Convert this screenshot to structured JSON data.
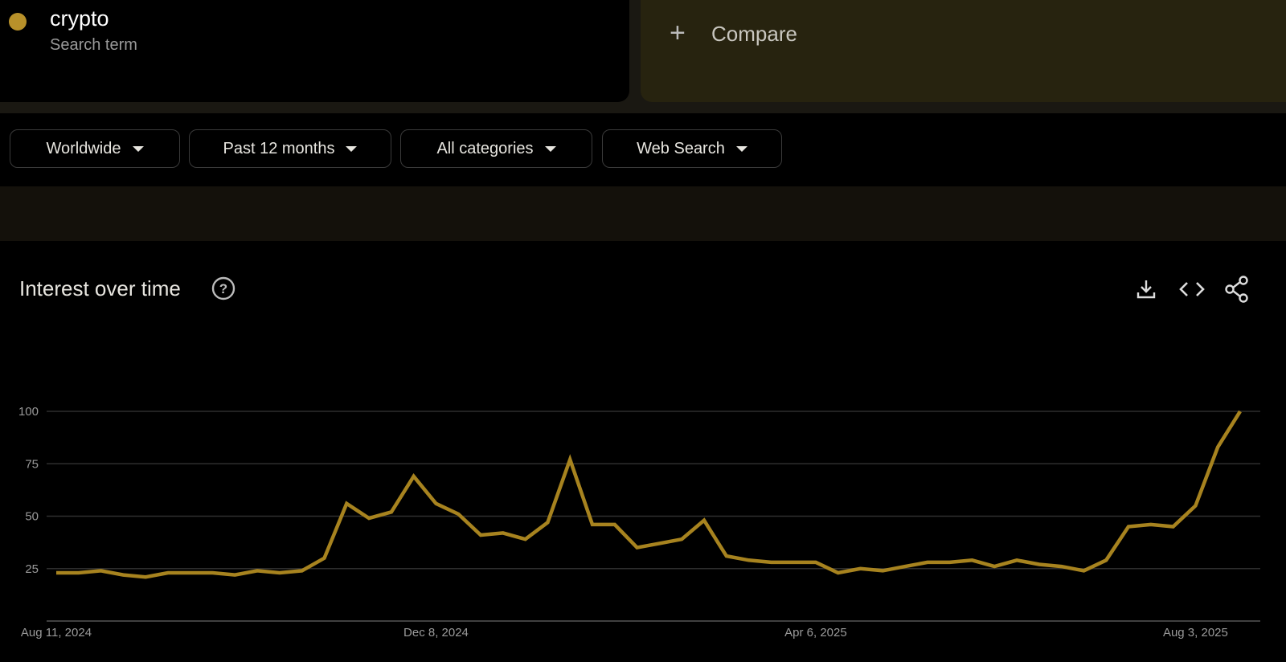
{
  "header": {
    "term": "crypto",
    "subtitle": "Search term",
    "compare": "Compare"
  },
  "filters": [
    "Worldwide",
    "Past 12 months",
    "All categories",
    "Web Search"
  ],
  "section_title": "Interest over time",
  "chart_data": {
    "type": "line",
    "color": "#a7831f",
    "categories": [
      "Aug 11, 2024",
      null,
      null,
      null,
      null,
      null,
      null,
      null,
      null,
      null,
      null,
      null,
      null,
      null,
      null,
      null,
      null,
      "Dec 8, 2024",
      null,
      null,
      null,
      null,
      null,
      null,
      null,
      null,
      null,
      null,
      null,
      null,
      null,
      null,
      null,
      null,
      "Apr 6, 2025",
      null,
      null,
      null,
      null,
      null,
      null,
      null,
      null,
      null,
      null,
      null,
      null,
      null,
      null,
      null,
      null,
      "Aug 3, 2025",
      null,
      null
    ],
    "values": [
      23,
      23,
      24,
      22,
      21,
      23,
      23,
      23,
      22,
      24,
      23,
      24,
      30,
      56,
      49,
      52,
      69,
      56,
      51,
      41,
      42,
      39,
      47,
      77,
      46,
      46,
      35,
      37,
      39,
      48,
      31,
      29,
      28,
      28,
      28,
      23,
      25,
      24,
      26,
      28,
      28,
      29,
      26,
      29,
      27,
      26,
      24,
      29,
      45,
      46,
      45,
      55,
      83,
      100
    ],
    "ylim": [
      0,
      100
    ],
    "yticks": [
      25,
      50,
      75,
      100
    ],
    "grid": true
  }
}
